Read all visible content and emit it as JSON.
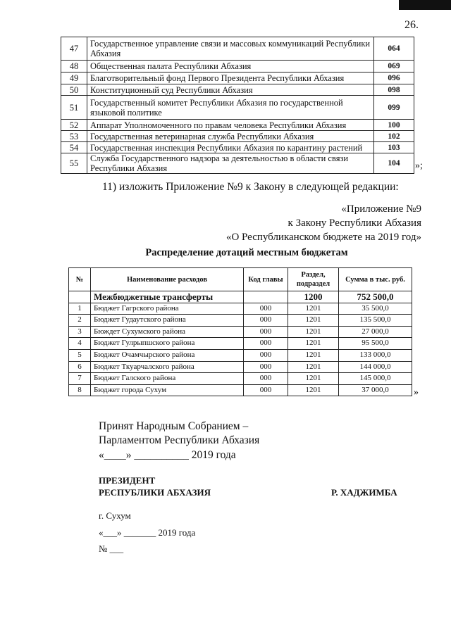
{
  "page_number": "26.",
  "agencies_table": {
    "rows": [
      {
        "n": "47",
        "name": "Государственное управление связи и массовых коммуникаций Республики Абхазия",
        "code": "064"
      },
      {
        "n": "48",
        "name": "Общественная палата Республики Абхазия",
        "code": "069"
      },
      {
        "n": "49",
        "name": "Благотворительный фонд Первого Президента Республики Абхазия",
        "code": "096"
      },
      {
        "n": "50",
        "name": "Конституционный суд Республики Абхазия",
        "code": "098"
      },
      {
        "n": "51",
        "name": "Государственный комитет Республики Абхазия по государственной языковой политике",
        "code": "099"
      },
      {
        "n": "52",
        "name": "Аппарат Уполномоченного по правам человека   Республики Абхазия",
        "code": "100"
      },
      {
        "n": "53",
        "name": "Государственная ветеринарная служба Республики Абхазия",
        "code": "102"
      },
      {
        "n": "54",
        "name": "Государственная инспекция Республики Абхазия по карантину растений",
        "code": "103"
      },
      {
        "n": "55",
        "name": "Служба Государственного надзора за деятельностью в области связи Республики Абхазия",
        "code": "104"
      }
    ],
    "closing": "»;"
  },
  "instruction": "11) изложить Приложение №9 к Закону в следующей редакции:",
  "appendix_header": [
    "«Приложение №9",
    "к Закону Республики Абхазия",
    "«О Республиканском бюджете на 2019 год»"
  ],
  "subsidies_title": "Распределение дотаций местным бюджетам",
  "subsidies_table": {
    "headers": [
      "№",
      "Наименование расходов",
      "Код главы",
      "Раздел, подраздел",
      "Сумма в тыс. руб."
    ],
    "total": {
      "name": "Межбюджетные трансферты",
      "section": "1200",
      "sum": "752 500,0"
    },
    "rows": [
      {
        "n": "1",
        "name": "Бюджет  Гагрского района",
        "code": "000",
        "section": "1201",
        "sum": "35 500,0"
      },
      {
        "n": "2",
        "name": "Бюджет Гудаутского района",
        "code": "000",
        "section": "1201",
        "sum": "135 500,0"
      },
      {
        "n": "3",
        "name": "Бюждет Сухумского района",
        "code": "000",
        "section": "1201",
        "sum": "27 000,0"
      },
      {
        "n": "4",
        "name": "Бюджет Гулрыпшского района",
        "code": "000",
        "section": "1201",
        "sum": "95 500,0"
      },
      {
        "n": "5",
        "name": "Бюджет Очамчырского района",
        "code": "000",
        "section": "1201",
        "sum": "133 000,0"
      },
      {
        "n": "6",
        "name": "Бюджет Ткуарчалского района",
        "code": "000",
        "section": "1201",
        "sum": "144 000,0"
      },
      {
        "n": "7",
        "name": "Бюджет Галского района",
        "code": "000",
        "section": "1201",
        "sum": "145 000,0"
      },
      {
        "n": "8",
        "name": "Бюджет города Сухум",
        "code": "000",
        "section": "1201",
        "sum": "37 000,0"
      }
    ],
    "closing": "»"
  },
  "adoption": [
    "Принят Народным Собранием –",
    "Парламентом Республики Абхазия",
    "«____» __________ 2019 года"
  ],
  "signature": {
    "title1": "ПРЕЗИДЕНТ",
    "title2": "РЕСПУБЛИКИ АБХАЗИЯ",
    "name": "Р. ХАДЖИМБА"
  },
  "place": "г. Сухум",
  "date": "«___» _______ 2019 года",
  "number": "№ ___"
}
